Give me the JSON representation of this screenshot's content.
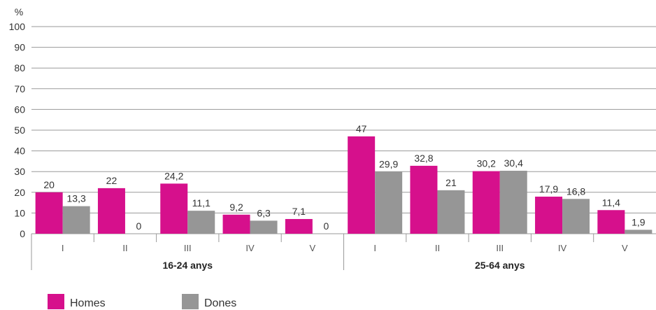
{
  "chart_data": {
    "type": "bar",
    "y_unit_label": "%",
    "ylim": [
      0,
      100
    ],
    "yticks": [
      0,
      10,
      20,
      30,
      40,
      50,
      60,
      70,
      80,
      90,
      100
    ],
    "grid": true,
    "legend_position": "bottom-left",
    "colors": {
      "Homes": "#d6108c",
      "Dones": "#969696"
    },
    "groups": [
      {
        "label": "16-24 anys",
        "categories": [
          "I",
          "II",
          "III",
          "IV",
          "V"
        ],
        "series": [
          {
            "name": "Homes",
            "values": [
              20,
              22,
              24.2,
              9.2,
              7.1
            ],
            "labels": [
              "20",
              "22",
              "24,2",
              "9,2",
              "7,1"
            ]
          },
          {
            "name": "Dones",
            "values": [
              13.3,
              0,
              11.1,
              6.3,
              0
            ],
            "labels": [
              "13,3",
              "0",
              "11,1",
              "6,3",
              "0"
            ]
          }
        ]
      },
      {
        "label": "25-64 anys",
        "categories": [
          "I",
          "II",
          "III",
          "IV",
          "V"
        ],
        "series": [
          {
            "name": "Homes",
            "values": [
              47,
              32.8,
              30.2,
              17.9,
              11.4
            ],
            "labels": [
              "47",
              "32,8",
              "30,2",
              "17,9",
              "11,4"
            ]
          },
          {
            "name": "Dones",
            "values": [
              29.9,
              21,
              30.4,
              16.8,
              1.9
            ],
            "labels": [
              "29,9",
              "21",
              "30,4",
              "16,8",
              "1,9"
            ]
          }
        ]
      }
    ],
    "legend": [
      "Homes",
      "Dones"
    ]
  }
}
